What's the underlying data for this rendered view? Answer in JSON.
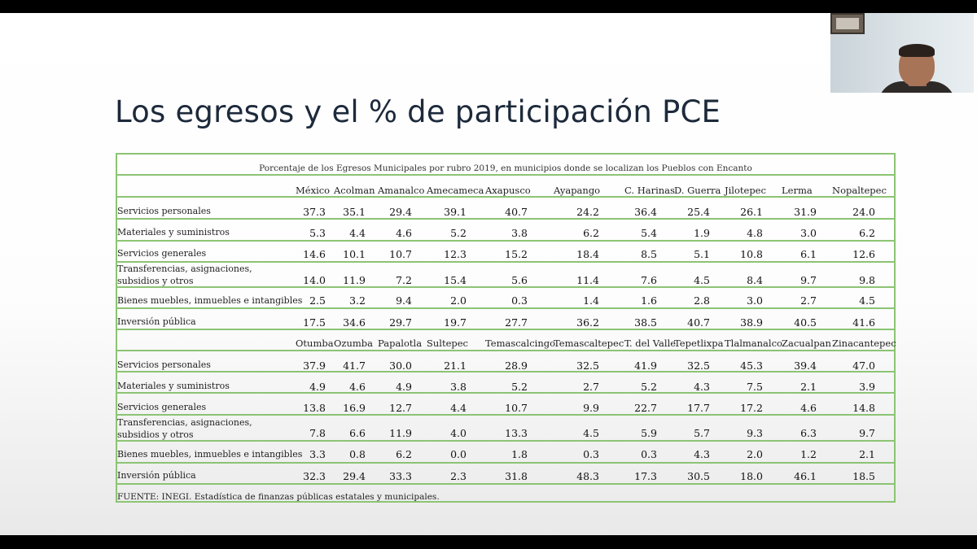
{
  "slide": {
    "title": "Los egresos y el % de participación PCE"
  },
  "table": {
    "caption": "Porcentaje de los Egresos Municipales por rubro 2019,  en municipios donde se localizan los Pueblos con Encanto",
    "row_labels": [
      "Servicios personales",
      "Materiales y suministros",
      "Servicios generales",
      "Transferencias, asignaciones, subsidios y otros",
      "Bienes muebles, inmuebles e intangibles",
      "Inversión pública"
    ],
    "section1": {
      "headers": [
        "México",
        "Acolman",
        "Amanalco",
        "Amecameca",
        "Axapusco",
        "Ayapango",
        "C. Harinas",
        "D. Guerra",
        "Jilotepec",
        "Lerma",
        "Nopaltepec"
      ],
      "rows": [
        [
          "37.3",
          "35.1",
          "29.4",
          "39.1",
          "40.7",
          "24.2",
          "36.4",
          "25.4",
          "26.1",
          "31.9",
          "24.0"
        ],
        [
          "5.3",
          "4.4",
          "4.6",
          "5.2",
          "3.8",
          "6.2",
          "5.4",
          "1.9",
          "4.8",
          "3.0",
          "6.2"
        ],
        [
          "14.6",
          "10.1",
          "10.7",
          "12.3",
          "15.2",
          "18.4",
          "8.5",
          "5.1",
          "10.8",
          "6.1",
          "12.6"
        ],
        [
          "14.0",
          "11.9",
          "7.2",
          "15.4",
          "5.6",
          "11.4",
          "7.6",
          "4.5",
          "8.4",
          "9.7",
          "9.8"
        ],
        [
          "2.5",
          "3.2",
          "9.4",
          "2.0",
          "0.3",
          "1.4",
          "1.6",
          "2.8",
          "3.0",
          "2.7",
          "4.5"
        ],
        [
          "17.5",
          "34.6",
          "29.7",
          "19.7",
          "27.7",
          "36.2",
          "38.5",
          "40.7",
          "38.9",
          "40.5",
          "41.6"
        ]
      ]
    },
    "section2": {
      "headers": [
        "Otumba",
        "Ozumba",
        "Papalotla",
        "Sultepec",
        "Temascalcingo",
        "Temascaltepec",
        "T. del Valle",
        "Tepetlixpa",
        "Tlalmanalco",
        "Zacualpan",
        "Zinacantepec"
      ],
      "rows": [
        [
          "37.9",
          "41.7",
          "30.0",
          "21.1",
          "28.9",
          "32.5",
          "41.9",
          "32.5",
          "45.3",
          "39.4",
          "47.0"
        ],
        [
          "4.9",
          "4.6",
          "4.9",
          "3.8",
          "5.2",
          "2.7",
          "5.2",
          "4.3",
          "7.5",
          "2.1",
          "3.9"
        ],
        [
          "13.8",
          "16.9",
          "12.7",
          "4.4",
          "10.7",
          "9.9",
          "22.7",
          "17.7",
          "17.2",
          "4.6",
          "14.8"
        ],
        [
          "7.8",
          "6.6",
          "11.9",
          "4.0",
          "13.3",
          "4.5",
          "5.9",
          "5.7",
          "9.3",
          "6.3",
          "9.7"
        ],
        [
          "3.3",
          "0.8",
          "6.2",
          "0.0",
          "1.8",
          "0.3",
          "0.3",
          "4.3",
          "2.0",
          "1.2",
          "2.1"
        ],
        [
          "32.3",
          "29.4",
          "33.3",
          "2.3",
          "31.8",
          "48.3",
          "17.3",
          "30.5",
          "18.0",
          "46.1",
          "18.5"
        ]
      ]
    },
    "source": "FUENTE: INEGI. Estadística de finanzas públicas estatales y municipales."
  }
}
